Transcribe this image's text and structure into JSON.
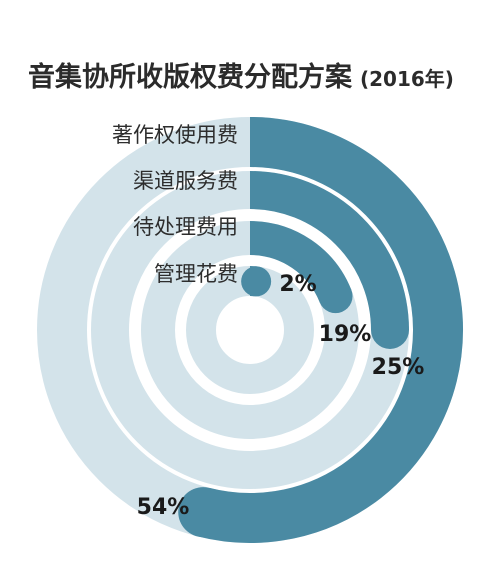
{
  "chart_data": {
    "type": "radial-bar",
    "title": "音集协所收版权费分配方案",
    "subtitle": "(2016年)",
    "categories": [
      "著作权使用费",
      "渠道服务费",
      "待处理费用",
      "管理花费"
    ],
    "values": [
      54,
      25,
      19,
      2
    ],
    "value_labels": [
      "54%",
      "25%",
      "19%",
      "2%"
    ],
    "unit": "%",
    "colors": {
      "bar": "#4a8aa3",
      "track": "#d3e3ea"
    }
  }
}
